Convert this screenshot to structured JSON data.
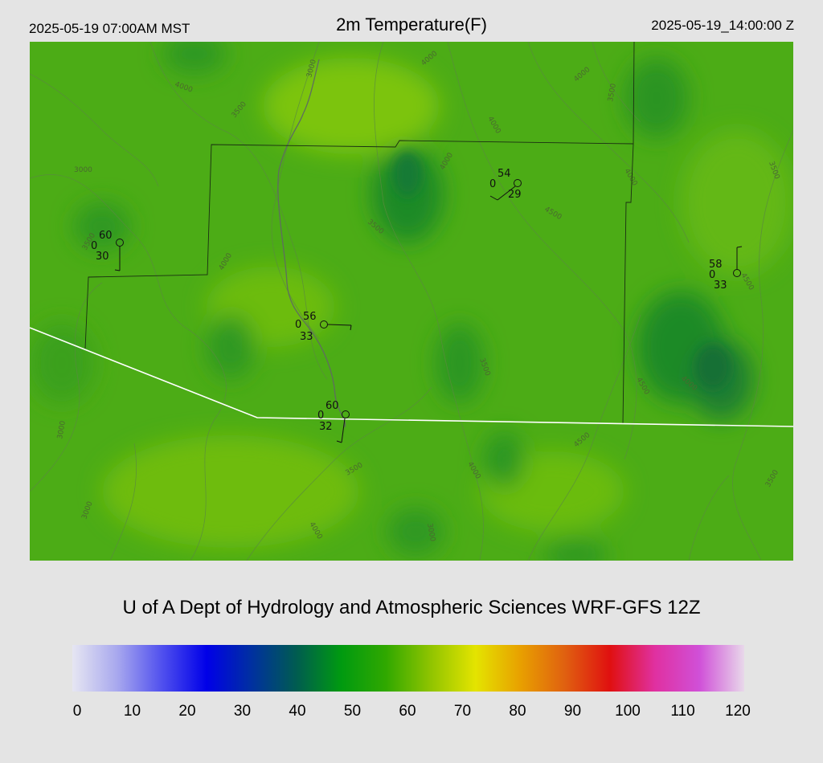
{
  "header": {
    "local_time": "2025-05-19 07:00AM MST",
    "title": "2m Temperature(F)",
    "utc_time": "2025-05-19_14:00:00 Z"
  },
  "credit": "U of A Dept of Hydrology and Atmospheric Sciences WRF-GFS 12Z",
  "colorbar": {
    "ticks": [
      "0",
      "10",
      "20",
      "30",
      "40",
      "50",
      "60",
      "70",
      "80",
      "90",
      "100",
      "110",
      "120"
    ],
    "stops": [
      "#e6e6f2",
      "#a8a8ee",
      "#5050ee",
      "#0000e8",
      "#0030a0",
      "#005c50",
      "#009a10",
      "#30a800",
      "#90c400",
      "#e4e400",
      "#e8a000",
      "#e06010",
      "#e01010",
      "#e030a0",
      "#d050d8",
      "#e8d8ea"
    ]
  },
  "stations": [
    {
      "id": "stn-a",
      "temp": "60",
      "cloud": "0",
      "dew": "30"
    },
    {
      "id": "stn-b",
      "temp": "54",
      "cloud": "0",
      "dew": "29"
    },
    {
      "id": "stn-c",
      "temp": "58",
      "cloud": "0",
      "dew": "33"
    },
    {
      "id": "stn-d",
      "temp": "56",
      "cloud": "0",
      "dew": "33"
    },
    {
      "id": "stn-e",
      "temp": "60",
      "cloud": "0",
      "dew": "32"
    }
  ],
  "contour_labels": [
    "4000",
    "3000",
    "4000",
    "3500",
    "4000",
    "4000",
    "3500",
    "3000",
    "4000",
    "3500",
    "4500",
    "4000",
    "3500",
    "4000",
    "3500",
    "4500",
    "3500",
    "4500",
    "4000",
    "4500",
    "4000",
    "3000",
    "3000",
    "3500",
    "4000",
    "3000",
    "3500"
  ]
}
